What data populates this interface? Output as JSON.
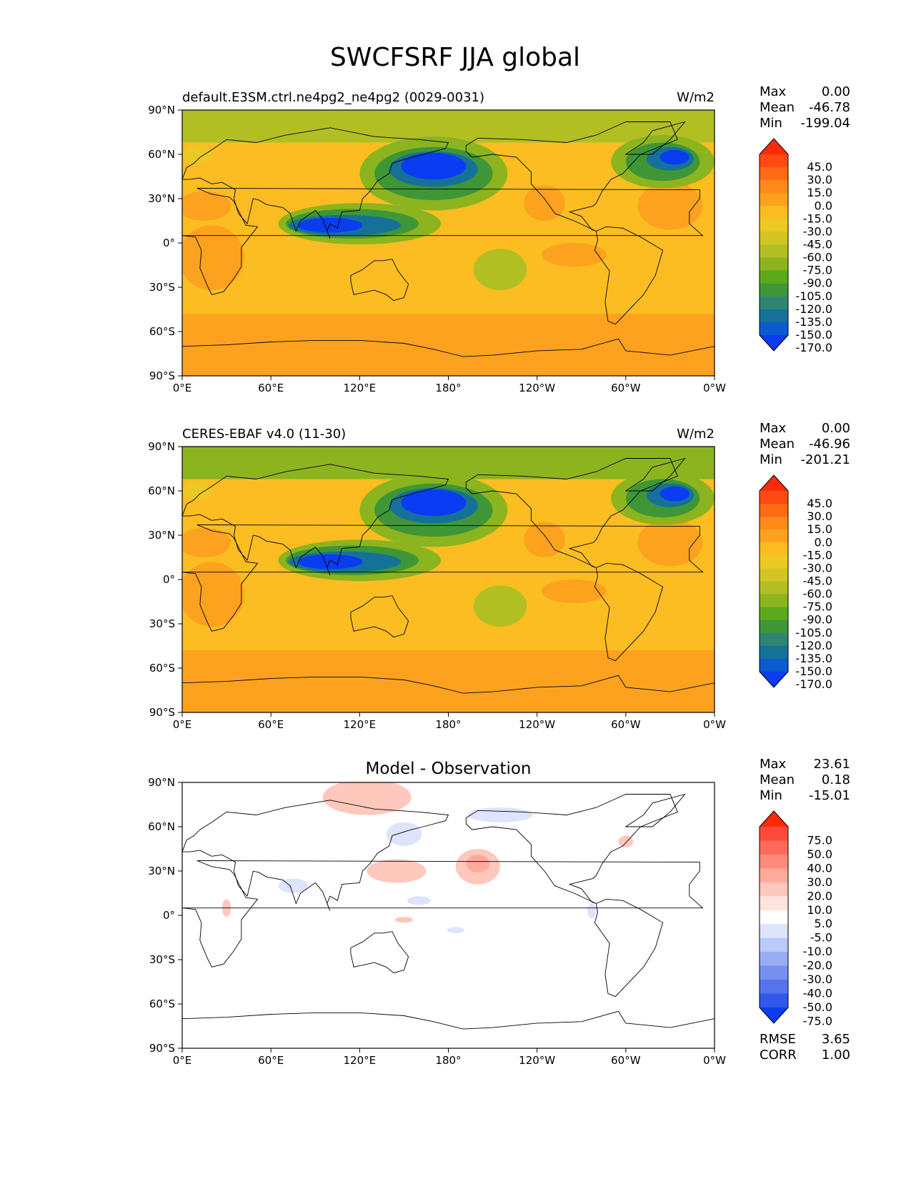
{
  "title": "SWCFSRF JJA global",
  "x_ticks": [
    "0°E",
    "60°E",
    "120°E",
    "180°",
    "120°W",
    "60°W",
    "0°W"
  ],
  "y_ticks": [
    "90°N",
    "60°N",
    "30°N",
    "0°",
    "30°S",
    "60°S",
    "90°S"
  ],
  "panels": [
    {
      "id": "model",
      "left_title": "default.E3SM.ctrl.ne4pg2_ne4pg2 (0029-0031)",
      "center_title": "",
      "units": "W/m2",
      "stats": [
        {
          "label": "Max",
          "value": "0.00"
        },
        {
          "label": "Mean",
          "value": "-46.78"
        },
        {
          "label": "Min",
          "value": "-199.04"
        }
      ],
      "colorbar_labels": [
        "45.0",
        "30.0",
        "15.0",
        "0.0",
        "-15.0",
        "-30.0",
        "-45.0",
        "-60.0",
        "-75.0",
        "-90.0",
        "-105.0",
        "-120.0",
        "-135.0",
        "-150.0",
        "-170.0"
      ],
      "colorbar_colors": [
        "#ff2a0a",
        "#ff4a12",
        "#ff6a14",
        "#ff8a1a",
        "#fda21e",
        "#fbbd21",
        "#ecc823",
        "#d2c524",
        "#b2bf23",
        "#8cb41e",
        "#5da91c",
        "#3f9636",
        "#2f8572",
        "#167199",
        "#0a5bd0",
        "#0a3cf2"
      ],
      "fields": {
        "background": "#fbbd21",
        "south_band": "#fda21e",
        "arctic": "#b2bf23",
        "storm_track": "#0a3cf2",
        "storm_track_edge": "#3f9636",
        "subtropical_high": "#fda21e",
        "tropics": "#ecc823"
      }
    },
    {
      "id": "obs",
      "left_title": "CERES-EBAF v4.0 (11-30)",
      "center_title": "",
      "units": "W/m2",
      "stats": [
        {
          "label": "Max",
          "value": "0.00"
        },
        {
          "label": "Mean",
          "value": "-46.96"
        },
        {
          "label": "Min",
          "value": "-201.21"
        }
      ],
      "colorbar_labels": [
        "45.0",
        "30.0",
        "15.0",
        "0.0",
        "-15.0",
        "-30.0",
        "-45.0",
        "-60.0",
        "-75.0",
        "-90.0",
        "-105.0",
        "-120.0",
        "-135.0",
        "-150.0",
        "-170.0"
      ],
      "colorbar_colors": [
        "#ff2a0a",
        "#ff4a12",
        "#ff6a14",
        "#ff8a1a",
        "#fda21e",
        "#fbbd21",
        "#ecc823",
        "#d2c524",
        "#b2bf23",
        "#8cb41e",
        "#5da91c",
        "#3f9636",
        "#2f8572",
        "#167199",
        "#0a5bd0",
        "#0a3cf2"
      ],
      "fields": {
        "background": "#fbbd21",
        "south_band": "#fda21e",
        "arctic": "#8cb41e",
        "storm_track": "#0a3cf2",
        "storm_track_edge": "#3f9636",
        "subtropical_high": "#fda21e",
        "tropics": "#ecc823"
      }
    },
    {
      "id": "diff",
      "left_title": "",
      "center_title": "Model - Observation",
      "units": "",
      "stats": [
        {
          "label": "Max",
          "value": "23.61"
        },
        {
          "label": "Mean",
          "value": "0.18"
        },
        {
          "label": "Min",
          "value": "-15.01"
        }
      ],
      "colorbar_labels": [
        "75.0",
        "50.0",
        "40.0",
        "30.0",
        "20.0",
        "10.0",
        "5.0",
        "-5.0",
        "-10.0",
        "-20.0",
        "-30.0",
        "-40.0",
        "-50.0",
        "-75.0"
      ],
      "colorbar_colors": [
        "#ff2a0a",
        "#ff4a3a",
        "#ff6a5a",
        "#ff8a7a",
        "#ffaa9a",
        "#ffc8bd",
        "#ffe4dc",
        "#ffffff",
        "#dde4fb",
        "#bac9f7",
        "#98acf3",
        "#7690ef",
        "#5374ec",
        "#3158ea",
        "#0a3cf2"
      ],
      "bottom_stats": [
        {
          "label": "RMSE",
          "value": "3.65"
        },
        {
          "label": "CORR",
          "value": "1.00"
        }
      ],
      "fields": {
        "background": "#ffffff",
        "positive": "#ffc8bd",
        "positive_strong": "#ffaa9a",
        "negative": "#dde4fb",
        "negative_strong": "#bac9f7"
      }
    }
  ]
}
